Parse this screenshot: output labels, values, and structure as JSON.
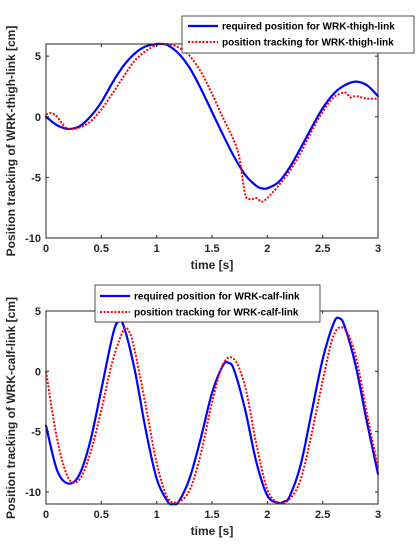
{
  "chart_data": [
    {
      "type": "line",
      "xlabel": "time [s]",
      "ylabel": "Position tracking of WRK-thigh-link [cm]",
      "xlim": [
        0,
        3
      ],
      "ylim": [
        -10,
        6
      ],
      "xticks": [
        0,
        0.5,
        1,
        1.5,
        2,
        2.5,
        3
      ],
      "yticks": [
        -10,
        -5,
        0,
        5
      ],
      "xtick_labels": [
        "0",
        "0.5",
        "1",
        "1.5",
        "2",
        "2.5",
        "3"
      ],
      "ytick_labels": [
        "-10",
        "-5",
        "0",
        "5"
      ],
      "grid": false,
      "legend_position": "top-right",
      "series": [
        {
          "name": "required position for WRK-thigh-link",
          "color": "#0000ff",
          "style": "solid",
          "x": [
            0,
            0.1,
            0.2,
            0.3,
            0.4,
            0.5,
            0.6,
            0.7,
            0.8,
            0.9,
            1.0,
            1.05,
            1.1,
            1.2,
            1.3,
            1.4,
            1.5,
            1.6,
            1.7,
            1.8,
            1.9,
            1.95,
            2.0,
            2.1,
            2.2,
            2.3,
            2.4,
            2.5,
            2.6,
            2.7,
            2.8,
            2.9,
            3.0
          ],
          "y": [
            0,
            -0.7,
            -1.0,
            -0.8,
            0,
            1.2,
            2.8,
            4.2,
            5.2,
            5.8,
            6.0,
            6.0,
            5.9,
            5.2,
            4.0,
            2.3,
            0.4,
            -1.5,
            -3.3,
            -4.8,
            -5.7,
            -5.9,
            -5.9,
            -5.4,
            -4.2,
            -2.6,
            -0.9,
            0.7,
            1.9,
            2.6,
            2.9,
            2.6,
            1.7
          ]
        },
        {
          "name": "position tracking for WRK-thigh-link",
          "color": "#ff0000",
          "style": "dotted",
          "x": [
            0,
            0.05,
            0.1,
            0.15,
            0.2,
            0.3,
            0.4,
            0.5,
            0.6,
            0.7,
            0.8,
            0.9,
            1.0,
            1.1,
            1.2,
            1.3,
            1.4,
            1.5,
            1.6,
            1.7,
            1.75,
            1.8,
            1.85,
            1.9,
            1.95,
            2.0,
            2.1,
            2.2,
            2.3,
            2.4,
            2.5,
            2.6,
            2.7,
            2.75,
            2.8,
            2.9,
            3.0
          ],
          "y": [
            0.2,
            0.3,
            0,
            -0.6,
            -1.0,
            -0.9,
            -0.4,
            0.6,
            1.9,
            3.3,
            4.6,
            5.4,
            5.9,
            6.0,
            5.7,
            5.0,
            3.7,
            1.9,
            -0.1,
            -2.0,
            -3.5,
            -6.4,
            -6.8,
            -6.7,
            -7.0,
            -6.7,
            -5.7,
            -4.5,
            -3.0,
            -1.2,
            0.4,
            1.6,
            2.0,
            1.6,
            1.7,
            1.5,
            1.5
          ]
        }
      ]
    },
    {
      "type": "line",
      "xlabel": "time [s]",
      "ylabel": "Position tracking of WRK-calf-link [cm]",
      "xlim": [
        0,
        3
      ],
      "ylim": [
        -11,
        5
      ],
      "xticks": [
        0,
        0.5,
        1,
        1.5,
        2,
        2.5,
        3
      ],
      "yticks": [
        -10,
        -5,
        0,
        5
      ],
      "xtick_labels": [
        "0",
        "0.5",
        "1",
        "1.5",
        "2",
        "2.5",
        "3"
      ],
      "ytick_labels": [
        "-10",
        "-5",
        "0",
        "5"
      ],
      "grid": false,
      "legend_position": "top-center",
      "series": [
        {
          "name": "required position for WRK-calf-link",
          "color": "#0000ff",
          "style": "solid",
          "x": [
            0,
            0.1,
            0.2,
            0.3,
            0.4,
            0.5,
            0.6,
            0.65,
            0.7,
            0.8,
            0.9,
            1.0,
            1.1,
            1.15,
            1.2,
            1.3,
            1.4,
            1.5,
            1.6,
            1.65,
            1.7,
            1.8,
            1.9,
            2.0,
            2.1,
            2.15,
            2.2,
            2.3,
            2.4,
            2.5,
            2.6,
            2.65,
            2.7,
            2.8,
            2.9,
            3.0
          ],
          "y": [
            -4.5,
            -8.2,
            -9.3,
            -8.6,
            -5.8,
            -1.5,
            2.9,
            4.1,
            3.8,
            0.2,
            -4.8,
            -8.9,
            -10.8,
            -11.0,
            -10.8,
            -8.8,
            -5.5,
            -1.8,
            0.5,
            0.7,
            0.1,
            -3.2,
            -7.5,
            -10.3,
            -10.9,
            -10.8,
            -10.4,
            -7.8,
            -3.4,
            1.0,
            4.0,
            4.4,
            3.7,
            0.4,
            -4.2,
            -8.5
          ]
        },
        {
          "name": "position tracking for WRK-calf-link",
          "color": "#ff0000",
          "style": "dotted",
          "x": [
            0,
            0.1,
            0.2,
            0.3,
            0.4,
            0.5,
            0.6,
            0.7,
            0.75,
            0.8,
            0.9,
            1.0,
            1.1,
            1.2,
            1.3,
            1.4,
            1.5,
            1.6,
            1.7,
            1.8,
            1.9,
            2.0,
            2.1,
            2.2,
            2.3,
            2.4,
            2.5,
            2.6,
            2.7,
            2.8,
            2.9,
            3.0
          ],
          "y": [
            0,
            -5.6,
            -8.8,
            -9.0,
            -6.8,
            -3.2,
            0.8,
            3.4,
            3.3,
            1.8,
            -2.8,
            -7.6,
            -10.5,
            -10.8,
            -9.8,
            -6.8,
            -2.6,
            0.6,
            1.0,
            -1.3,
            -6.0,
            -9.8,
            -10.9,
            -10.6,
            -9.0,
            -5.2,
            -0.8,
            3.0,
            3.5,
            1.2,
            -3.5,
            -8.0
          ]
        }
      ]
    }
  ]
}
